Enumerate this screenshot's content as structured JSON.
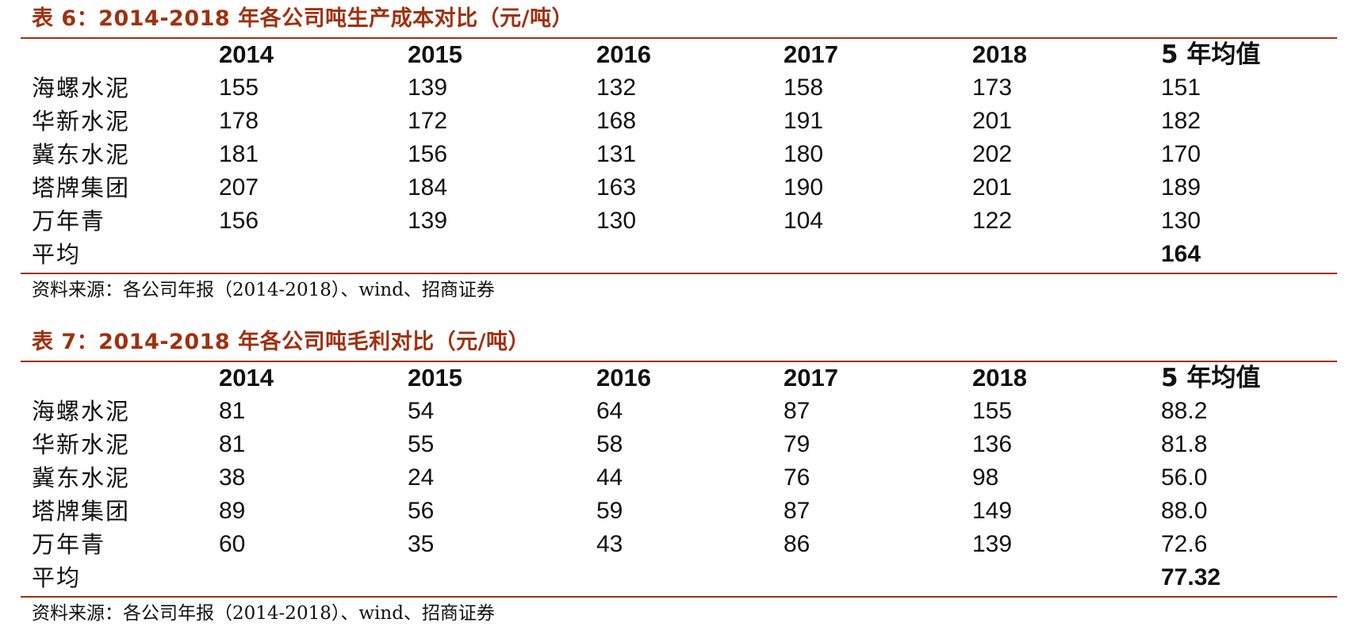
{
  "tables": [
    {
      "title": "表 6：2014-2018 年各公司吨生产成本对比（元/吨）",
      "headers": [
        "",
        "2014",
        "2015",
        "2016",
        "2017",
        "2018",
        "5 年均值"
      ],
      "rows": [
        {
          "label": "海螺水泥",
          "values": [
            "155",
            "139",
            "132",
            "158",
            "173",
            "151"
          ]
        },
        {
          "label": "华新水泥",
          "values": [
            "178",
            "172",
            "168",
            "191",
            "201",
            "182"
          ]
        },
        {
          "label": "冀东水泥",
          "values": [
            "181",
            "156",
            "131",
            "180",
            "202",
            "170"
          ]
        },
        {
          "label": "塔牌集团",
          "values": [
            "207",
            "184",
            "163",
            "190",
            "201",
            "189"
          ]
        },
        {
          "label": "万年青",
          "values": [
            "156",
            "139",
            "130",
            "104",
            "122",
            "130"
          ]
        }
      ],
      "average": {
        "label": "平均",
        "value": "164"
      },
      "source": "资料来源：各公司年报（2014-2018）、wind、招商证券"
    },
    {
      "title": "表 7：2014-2018 年各公司吨毛利对比（元/吨）",
      "headers": [
        "",
        "2014",
        "2015",
        "2016",
        "2017",
        "2018",
        "5 年均值"
      ],
      "rows": [
        {
          "label": "海螺水泥",
          "values": [
            "81",
            "54",
            "64",
            "87",
            "155",
            "88.2"
          ]
        },
        {
          "label": "华新水泥",
          "values": [
            "81",
            "55",
            "58",
            "79",
            "136",
            "81.8"
          ]
        },
        {
          "label": "冀东水泥",
          "values": [
            "38",
            "24",
            "44",
            "76",
            "98",
            "56.0"
          ]
        },
        {
          "label": "塔牌集团",
          "values": [
            "89",
            "56",
            "59",
            "87",
            "149",
            "88.0"
          ]
        },
        {
          "label": "万年青",
          "values": [
            "60",
            "35",
            "43",
            "86",
            "139",
            "72.6"
          ]
        }
      ],
      "average": {
        "label": "平均",
        "value": "77.32"
      },
      "source": "资料来源：各公司年报（2014-2018）、wind、招商证券"
    }
  ],
  "colors": {
    "accent": "#a0300f",
    "text": "#111111"
  }
}
